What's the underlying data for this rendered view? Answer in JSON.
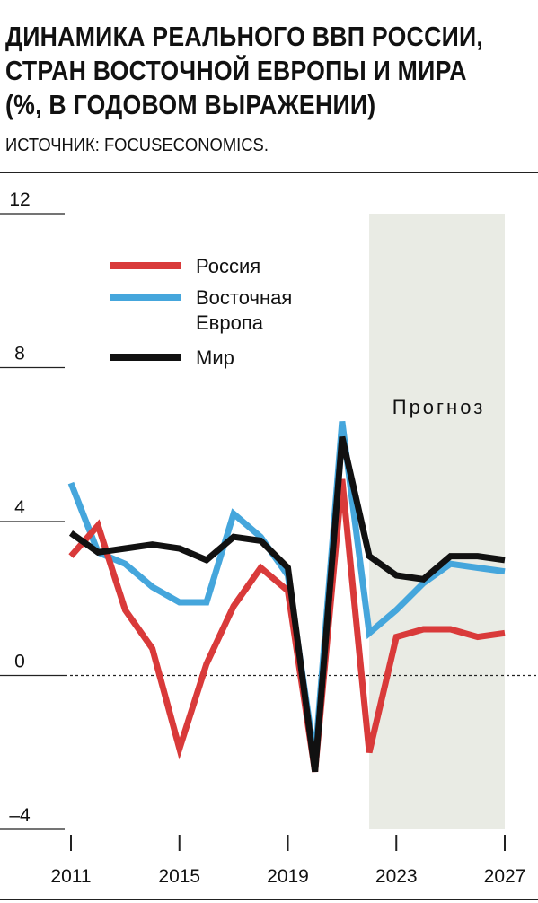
{
  "header": {
    "title_lines": [
      "ДИНАМИКА РЕАЛЬНОГО ВВП РОССИИ,",
      "СТРАН ВОСТОЧНОЙ ЕВРОПЫ И МИРА",
      "(%, В ГОДОВОМ ВЫРАЖЕНИИ)"
    ],
    "source": "ИСТОЧНИК: FOCUSECONOMICS."
  },
  "chart_data": {
    "type": "line",
    "x": [
      2011,
      2012,
      2013,
      2014,
      2015,
      2016,
      2017,
      2018,
      2019,
      2020,
      2021,
      2022,
      2023,
      2024,
      2025,
      2026,
      2027
    ],
    "x_ticks": [
      "2011",
      "2015",
      "2019",
      "2023",
      "2027"
    ],
    "x_tick_values": [
      2011,
      2015,
      2019,
      2023,
      2027
    ],
    "y_ticks": [
      "12",
      "8",
      "4",
      "0",
      "–4"
    ],
    "y_tick_values": [
      12,
      8,
      4,
      0,
      -4
    ],
    "ylim": [
      -4,
      12
    ],
    "xlim": [
      2011,
      2027
    ],
    "zero_line": "dashed",
    "forecast": {
      "label": "Прогноз",
      "from": 2022,
      "to": 2027,
      "color": "#e9ebe4"
    },
    "legend_position": "top-left",
    "series": [
      {
        "name": "Россия",
        "color": "#d93a3a",
        "values": [
          3.1,
          3.9,
          1.7,
          0.7,
          -1.9,
          0.3,
          1.8,
          2.8,
          2.2,
          -2.5,
          5.1,
          -2.0,
          1.0,
          1.2,
          1.2,
          1.0,
          1.1
        ]
      },
      {
        "name_lines": [
          "Восточная",
          "Европа"
        ],
        "color": "#45a6dc",
        "values": [
          5.0,
          3.2,
          2.9,
          2.3,
          1.9,
          1.9,
          4.2,
          3.6,
          2.6,
          -2.2,
          6.6,
          1.1,
          1.7,
          2.4,
          2.9,
          2.8,
          2.7
        ]
      },
      {
        "name": "Мир",
        "color": "#111111",
        "values": [
          3.7,
          3.2,
          3.3,
          3.4,
          3.3,
          3.0,
          3.6,
          3.5,
          2.8,
          -2.5,
          6.2,
          3.1,
          2.6,
          2.5,
          3.1,
          3.1,
          3.0
        ]
      }
    ]
  }
}
